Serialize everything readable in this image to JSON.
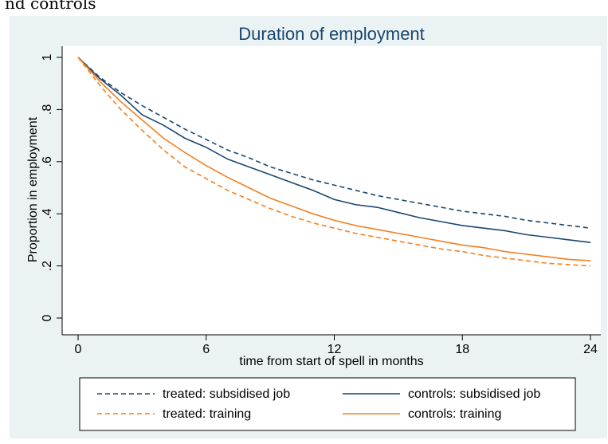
{
  "page": {
    "header_fragment": "nd controls"
  },
  "chart_data": {
    "type": "line",
    "title": "Duration of employment",
    "xlabel": "time from start of spell in months",
    "ylabel": "Proportion in employment",
    "xlim": [
      0,
      24
    ],
    "ylim": [
      0,
      1
    ],
    "xticks": [
      0,
      6,
      12,
      18,
      24
    ],
    "yticks": [
      0,
      0.2,
      0.4,
      0.6,
      0.8,
      1
    ],
    "ytick_labels": [
      "0",
      ".2",
      ".4",
      ".6",
      ".8",
      "1"
    ],
    "grid": false,
    "legend_position": "bottom",
    "background_color": "#eaf2f3",
    "plot_background_color": "#ffffff",
    "x": [
      0,
      1,
      2,
      3,
      4,
      5,
      6,
      7,
      8,
      9,
      10,
      11,
      12,
      13,
      14,
      15,
      16,
      17,
      18,
      19,
      20,
      21,
      22,
      23,
      24
    ],
    "series": [
      {
        "name": "treated: subsidised job",
        "color": "#1a476f",
        "dash": "dashed",
        "values": [
          1.0,
          0.925,
          0.865,
          0.815,
          0.77,
          0.725,
          0.685,
          0.645,
          0.615,
          0.58,
          0.555,
          0.53,
          0.51,
          0.49,
          0.47,
          0.455,
          0.44,
          0.425,
          0.41,
          0.4,
          0.39,
          0.375,
          0.365,
          0.355,
          0.345
        ]
      },
      {
        "name": "controls: subsidised job",
        "color": "#1a476f",
        "dash": "solid",
        "values": [
          1.0,
          0.92,
          0.855,
          0.78,
          0.74,
          0.69,
          0.655,
          0.61,
          0.58,
          0.55,
          0.52,
          0.49,
          0.455,
          0.435,
          0.425,
          0.405,
          0.385,
          0.37,
          0.355,
          0.345,
          0.335,
          0.32,
          0.31,
          0.3,
          0.29
        ]
      },
      {
        "name": "treated: training",
        "color": "#f57f1f",
        "dash": "dashed",
        "values": [
          1.0,
          0.895,
          0.8,
          0.72,
          0.645,
          0.58,
          0.535,
          0.49,
          0.455,
          0.42,
          0.39,
          0.365,
          0.345,
          0.325,
          0.31,
          0.295,
          0.28,
          0.265,
          0.255,
          0.24,
          0.23,
          0.22,
          0.21,
          0.205,
          0.2
        ]
      },
      {
        "name": "controls: training",
        "color": "#f57f1f",
        "dash": "solid",
        "values": [
          1.0,
          0.91,
          0.83,
          0.76,
          0.69,
          0.635,
          0.585,
          0.54,
          0.5,
          0.46,
          0.43,
          0.4,
          0.375,
          0.355,
          0.34,
          0.325,
          0.31,
          0.295,
          0.28,
          0.27,
          0.255,
          0.245,
          0.235,
          0.225,
          0.22
        ]
      }
    ],
    "legend_layout": [
      [
        "treated: subsidised job",
        "controls: subsidised job"
      ],
      [
        "treated: training",
        "controls: training"
      ]
    ]
  }
}
